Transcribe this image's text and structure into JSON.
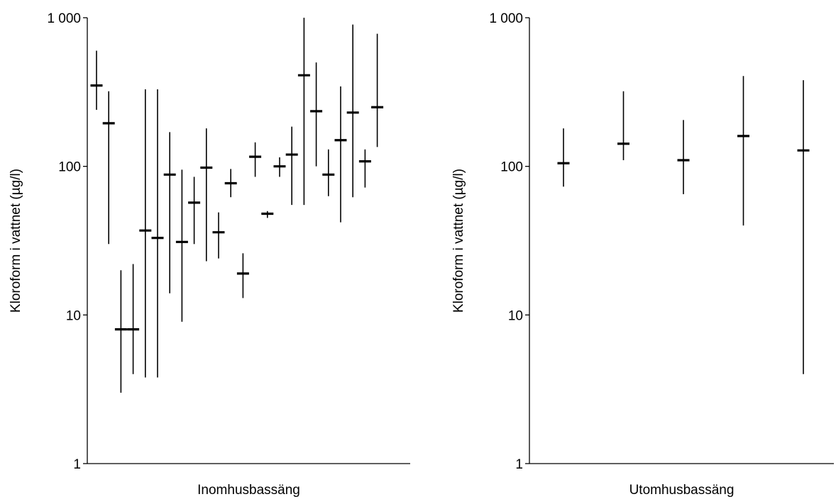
{
  "chart_data": [
    {
      "type": "scatter",
      "xlabel": "Inomhusbassäng",
      "ylabel": "Kloroform i vattnet  (µg/l)",
      "yscale": "log",
      "ylim": [
        1,
        1000
      ],
      "yticks": [
        "1",
        "10",
        "100",
        "1 000"
      ],
      "series": [
        {
          "points": [
            {
              "value": 350,
              "low": 240,
              "high": 600
            },
            {
              "value": 195,
              "low": 30,
              "high": 320
            },
            {
              "value": 8,
              "low": 3,
              "high": 20
            },
            {
              "value": 8,
              "low": 4,
              "high": 22
            },
            {
              "value": 37,
              "low": 3.8,
              "high": 330
            },
            {
              "value": 33,
              "low": 3.8,
              "high": 330
            },
            {
              "value": 88,
              "low": 14,
              "high": 170
            },
            {
              "value": 31,
              "low": 9,
              "high": 95
            },
            {
              "value": 57,
              "low": 30,
              "high": 85
            },
            {
              "value": 98,
              "low": 23,
              "high": 180
            },
            {
              "value": 36,
              "low": 24,
              "high": 49
            },
            {
              "value": 77,
              "low": 62,
              "high": 96
            },
            {
              "value": 19,
              "low": 13,
              "high": 26
            },
            {
              "value": 116,
              "low": 85,
              "high": 145
            },
            {
              "value": 48,
              "low": 45,
              "high": 50
            },
            {
              "value": 100,
              "low": 85,
              "high": 115
            },
            {
              "value": 120,
              "low": 55,
              "high": 185
            },
            {
              "value": 410,
              "low": 55,
              "high": 1000
            },
            {
              "value": 235,
              "low": 100,
              "high": 500
            },
            {
              "value": 88,
              "low": 63,
              "high": 130
            },
            {
              "value": 150,
              "low": 42,
              "high": 345
            },
            {
              "value": 230,
              "low": 62,
              "high": 900
            },
            {
              "value": 108,
              "low": 72,
              "high": 130
            },
            {
              "value": 250,
              "low": 135,
              "high": 780
            }
          ]
        }
      ]
    },
    {
      "type": "scatter",
      "xlabel": "Utomhusbassäng",
      "ylabel": "Kloroform i vattnet  (µg/l)",
      "yscale": "log",
      "ylim": [
        1,
        1000
      ],
      "yticks": [
        "1",
        "10",
        "100",
        "1 000"
      ],
      "series": [
        {
          "points": [
            {
              "value": 105,
              "low": 73,
              "high": 180
            },
            {
              "value": 142,
              "low": 110,
              "high": 320
            },
            {
              "value": 110,
              "low": 65,
              "high": 205
            },
            {
              "value": 160,
              "low": 40,
              "high": 405
            },
            {
              "value": 128,
              "low": 4,
              "high": 380
            }
          ]
        }
      ]
    }
  ]
}
